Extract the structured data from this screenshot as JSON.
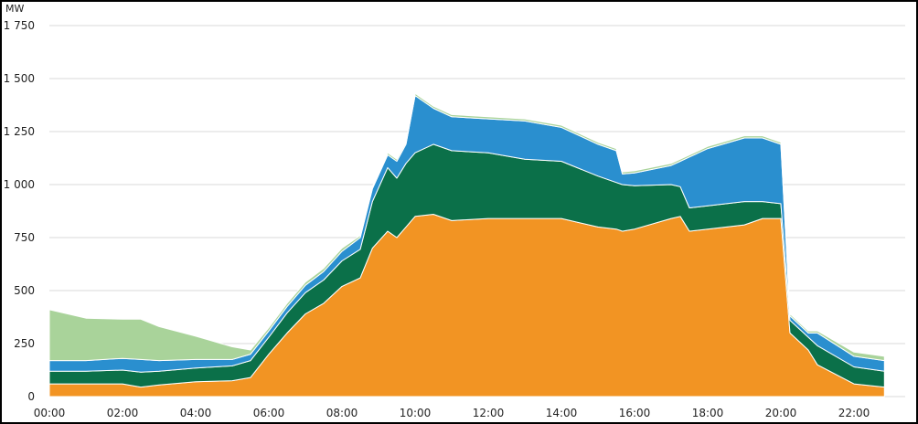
{
  "chart_data": {
    "type": "area",
    "stacked": true,
    "yunit": "MW",
    "title": "",
    "xlabel": "",
    "ylabel": "",
    "ylim": [
      0,
      1750
    ],
    "xlim_hours": [
      0,
      24
    ],
    "grid": "horizontal",
    "legend": "none",
    "y_ticks": [
      {
        "value": 0,
        "label": "0"
      },
      {
        "value": 250,
        "label": "250"
      },
      {
        "value": 500,
        "label": "500"
      },
      {
        "value": 750,
        "label": "750"
      },
      {
        "value": 1000,
        "label": "1 000"
      },
      {
        "value": 1250,
        "label": "1 250"
      },
      {
        "value": 1500,
        "label": "1 500"
      },
      {
        "value": 1750,
        "label": "1 750"
      }
    ],
    "x_ticks": [
      "00:00",
      "02:00",
      "04:00",
      "06:00",
      "08:00",
      "10:00",
      "12:00",
      "14:00",
      "16:00",
      "18:00",
      "20:00",
      "22:00"
    ],
    "x": [
      "00:00",
      "01:00",
      "02:00",
      "02:30",
      "03:00",
      "04:00",
      "05:00",
      "05:30",
      "06:00",
      "06:30",
      "07:00",
      "07:30",
      "08:00",
      "08:30",
      "08:50",
      "09:15",
      "09:30",
      "09:45",
      "10:00",
      "10:30",
      "11:00",
      "12:00",
      "13:00",
      "14:00",
      "15:00",
      "15:30",
      "15:40",
      "16:00",
      "17:00",
      "17:15",
      "17:30",
      "18:00",
      "19:00",
      "19:30",
      "20:00",
      "20:15",
      "20:45",
      "21:00",
      "22:00",
      "22:50"
    ],
    "series": [
      {
        "color": "#f29423",
        "values": [
          60,
          60,
          60,
          45,
          55,
          70,
          75,
          90,
          200,
          300,
          390,
          440,
          520,
          560,
          700,
          780,
          750,
          800,
          850,
          860,
          830,
          840,
          840,
          840,
          800,
          790,
          780,
          790,
          840,
          850,
          780,
          790,
          810,
          840,
          840,
          300,
          220,
          150,
          60,
          45
        ]
      },
      {
        "color": "#0b7049",
        "values": [
          60,
          60,
          65,
          70,
          65,
          65,
          70,
          80,
          80,
          95,
          100,
          110,
          120,
          135,
          220,
          300,
          280,
          300,
          300,
          330,
          330,
          310,
          280,
          270,
          240,
          220,
          220,
          205,
          160,
          140,
          110,
          110,
          110,
          80,
          70,
          60,
          60,
          90,
          80,
          75
        ]
      },
      {
        "color": "#2a8fcf",
        "values": [
          50,
          50,
          55,
          60,
          50,
          40,
          30,
          30,
          30,
          30,
          35,
          40,
          45,
          55,
          60,
          60,
          80,
          90,
          270,
          170,
          160,
          160,
          180,
          160,
          150,
          150,
          50,
          60,
          90,
          120,
          240,
          270,
          300,
          300,
          280,
          20,
          20,
          60,
          50,
          50
        ]
      },
      {
        "color": "#a9d39a",
        "values": [
          240,
          200,
          185,
          190,
          160,
          110,
          60,
          20,
          15,
          15,
          15,
          15,
          15,
          10,
          10,
          10,
          10,
          10,
          10,
          10,
          10,
          10,
          10,
          10,
          10,
          10,
          10,
          10,
          10,
          10,
          10,
          10,
          10,
          10,
          10,
          10,
          10,
          10,
          20,
          20
        ]
      }
    ]
  }
}
